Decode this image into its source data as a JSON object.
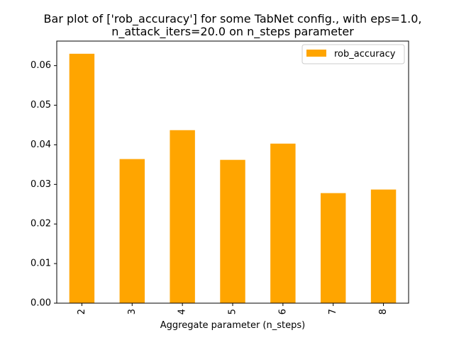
{
  "chart_data": {
    "type": "bar",
    "title_lines": [
      "Bar plot of ['rob_accuracy'] for some TabNet config., with eps=1.0,",
      "n_attack_iters=20.0 on n_steps parameter"
    ],
    "xlabel": "Aggregate parameter (n_steps)",
    "ylabel": "",
    "categories": [
      "2",
      "3",
      "4",
      "5",
      "6",
      "7",
      "8"
    ],
    "series": [
      {
        "name": "rob_accuracy",
        "values": [
          0.063,
          0.0364,
          0.0437,
          0.0362,
          0.0403,
          0.0278,
          0.0287
        ]
      }
    ],
    "ylim": [
      0,
      0.0662
    ],
    "yticks": [
      0.0,
      0.01,
      0.02,
      0.03,
      0.04,
      0.05,
      0.06
    ],
    "ytick_labels": [
      "0.00",
      "0.01",
      "0.02",
      "0.03",
      "0.04",
      "0.05",
      "0.06"
    ],
    "xtick_rotation": "vertical",
    "grid": false,
    "legend_position": "top-right",
    "colors": {
      "bar": "#ffa500",
      "axis": "#000000",
      "legend_border": "#cccccc",
      "background": "#ffffff"
    }
  }
}
